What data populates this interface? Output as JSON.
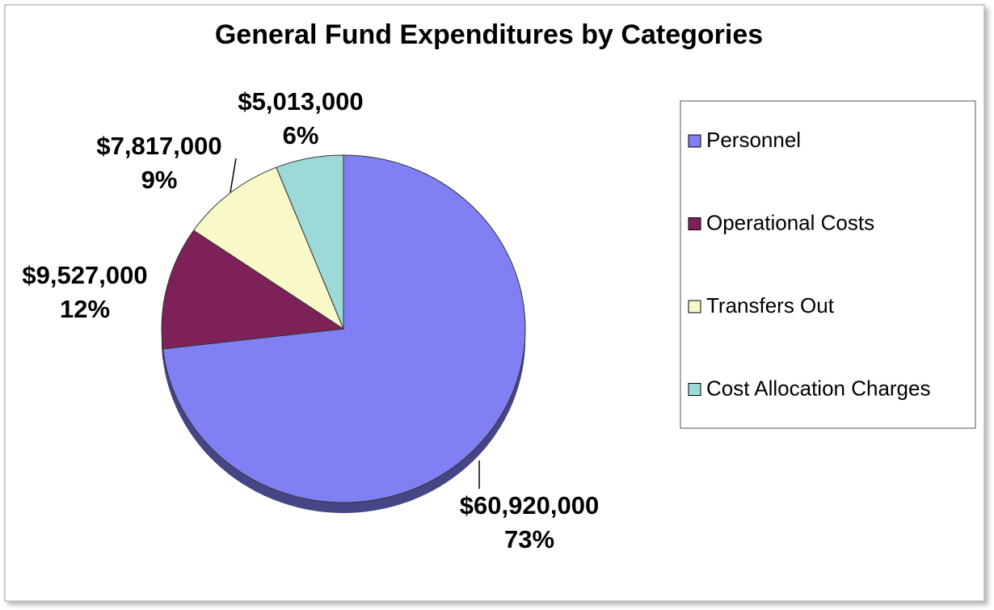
{
  "chart_data": {
    "type": "pie",
    "title": "General Fund Expenditures by Categories",
    "categories": [
      "Personnel",
      "Operational Costs",
      "Transfers Out",
      "Cost Allocation Charges"
    ],
    "values": [
      60920000,
      9527000,
      7817000,
      5013000
    ],
    "value_labels": [
      "$60,920,000",
      "$9,527,000",
      "$7,817,000",
      "$5,013,000"
    ],
    "percents": [
      73,
      12,
      9,
      6
    ],
    "percent_labels": [
      "73%",
      "12%",
      "9%",
      "6%"
    ],
    "colors": [
      "#8080f4",
      "#7f2159",
      "#f8f8c8",
      "#9cdada"
    ],
    "legend": "right"
  }
}
